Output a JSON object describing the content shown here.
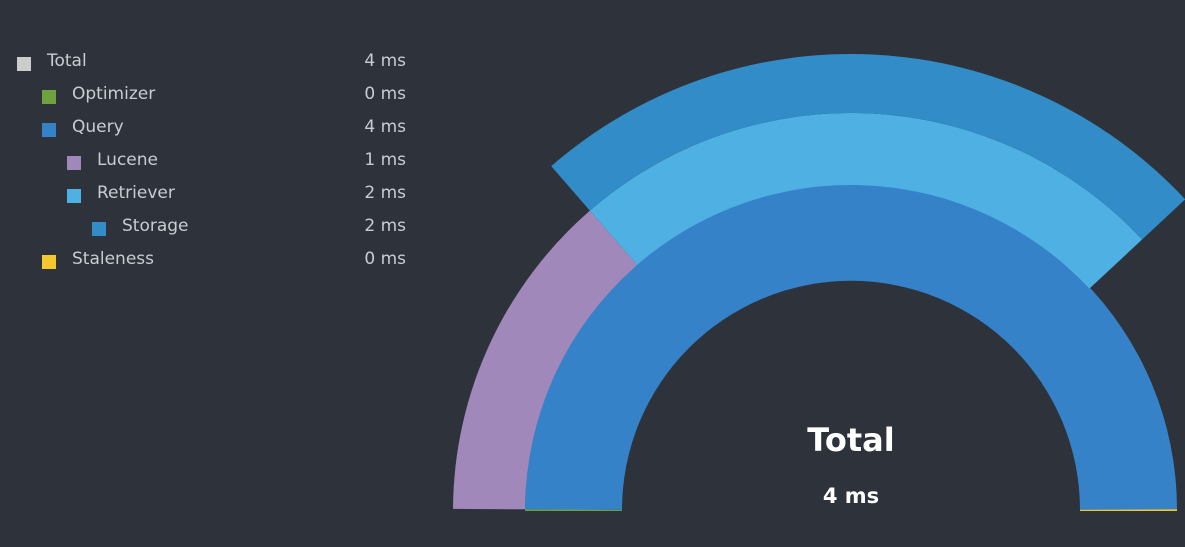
{
  "chart_data": {
    "type": "sunburst",
    "unit": "ms",
    "center": {
      "title": "Total",
      "value": "4 ms"
    },
    "nodes": [
      {
        "id": "total",
        "name": "Total",
        "value_label": "4 ms",
        "value": 4,
        "depth": 0,
        "parent": null,
        "color": "#cccccc",
        "arc": [
          0,
          180
        ]
      },
      {
        "id": "optimizer",
        "name": "Optimizer",
        "value_label": "0 ms",
        "value": 0,
        "depth": 1,
        "parent": "total",
        "color": "#6fa23f",
        "arc": [
          0,
          0.3
        ]
      },
      {
        "id": "query",
        "name": "Query",
        "value_label": "4 ms",
        "value": 4,
        "depth": 1,
        "parent": "total",
        "color": "#3582c8",
        "arc": [
          0.3,
          179.7
        ]
      },
      {
        "id": "lucene",
        "name": "Lucene",
        "value_label": "1 ms",
        "value": 1,
        "depth": 2,
        "parent": "query",
        "color": "#a188bb",
        "arc": [
          0.3,
          49
        ]
      },
      {
        "id": "retriever",
        "name": "Retriever",
        "value_label": "2 ms",
        "value": 2,
        "depth": 2,
        "parent": "query",
        "color": "#4eb0e3",
        "arc": [
          49,
          137
        ]
      },
      {
        "id": "storage",
        "name": "Storage",
        "value_label": "2 ms",
        "value": 2,
        "depth": 3,
        "parent": "retriever",
        "color": "#318cc7",
        "arc": [
          49,
          137
        ]
      },
      {
        "id": "staleness",
        "name": "Staleness",
        "value_label": "0 ms",
        "value": 0,
        "depth": 1,
        "parent": "total",
        "color": "#f2c82e",
        "arc": [
          179.7,
          180
        ]
      }
    ]
  }
}
